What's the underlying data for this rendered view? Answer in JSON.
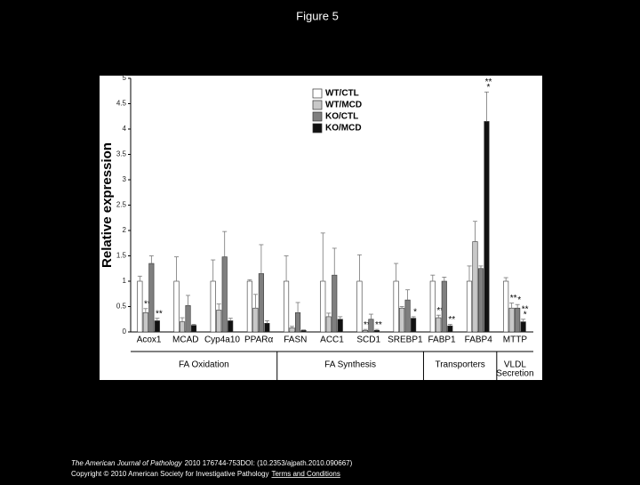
{
  "title": "Figure 5",
  "chart_data": {
    "type": "bar",
    "y_label": "Relative expression",
    "categories": [
      "Acox1",
      "MCAD",
      "Cyp4a10",
      "PPARα",
      "FASN",
      "ACC1",
      "SCD1",
      "SREBP1",
      "FABP1",
      "FABP4",
      "MTTP"
    ],
    "series": [
      {
        "name": "WT/CTL",
        "color": "#ffffff",
        "values": [
          1.0,
          1.0,
          1.0,
          1.0,
          1.0,
          1.0,
          1.0,
          1.0,
          1.0,
          1.0,
          1.0
        ],
        "errors": [
          0.1,
          0.48,
          0.42,
          0.03,
          0.5,
          0.95,
          0.52,
          0.35,
          0.12,
          0.3,
          0.07
        ],
        "significance": [
          null,
          null,
          null,
          null,
          null,
          null,
          null,
          null,
          null,
          null,
          null
        ]
      },
      {
        "name": "WT/MCD",
        "color": "#c8c8c8",
        "values": [
          0.38,
          0.2,
          0.43,
          0.47,
          0.08,
          0.3,
          0.03,
          0.47,
          0.28,
          1.78,
          0.47
        ],
        "errors": [
          0.08,
          0.08,
          0.12,
          0.27,
          0.03,
          0.07,
          0.02,
          0.03,
          0.05,
          0.4,
          0.1
        ],
        "significance": [
          "**",
          null,
          null,
          null,
          null,
          null,
          "**",
          null,
          "**",
          null,
          "**"
        ]
      },
      {
        "name": "KO/CTL",
        "color": "#7f7f7f",
        "values": [
          1.35,
          0.52,
          1.48,
          1.15,
          0.38,
          1.12,
          0.25,
          0.63,
          1.0,
          1.25,
          0.47
        ],
        "errors": [
          0.15,
          0.2,
          0.5,
          0.57,
          0.2,
          0.53,
          0.1,
          0.2,
          0.08,
          0.05,
          0.07
        ],
        "significance": [
          null,
          null,
          null,
          null,
          null,
          null,
          null,
          null,
          null,
          null,
          [
            "*"
          ]
        ]
      },
      {
        "name": "KO/MCD",
        "color": "#111111",
        "values": [
          0.22,
          0.13,
          0.22,
          0.17,
          0.03,
          0.25,
          0.03,
          0.27,
          0.12,
          4.15,
          0.2
        ],
        "errors": [
          0.05,
          0.02,
          0.05,
          0.05,
          0.01,
          0.05,
          0.02,
          0.03,
          0.03,
          0.58,
          0.05
        ],
        "significance": [
          "**",
          null,
          null,
          null,
          null,
          null,
          "**",
          "*",
          "**",
          [
            "**",
            "*"
          ],
          [
            "**",
            "*"
          ]
        ]
      }
    ],
    "groups": [
      {
        "label": "FA Oxidation",
        "categories": [
          "Acox1",
          "MCAD",
          "Cyp4a10",
          "PPARα"
        ]
      },
      {
        "label": "FA Synthesis",
        "categories": [
          "FASN",
          "ACC1",
          "SCD1",
          "SREBP1"
        ]
      },
      {
        "label": "Transporters",
        "categories": [
          "FABP1",
          "FABP4"
        ]
      },
      {
        "label": [
          "VLDL",
          "Secretion"
        ],
        "categories": [
          "MTTP"
        ]
      }
    ],
    "ylim": [
      0,
      5
    ],
    "yticks": [
      0,
      0.5,
      1,
      1.5,
      2,
      2.5,
      3,
      3.5,
      4,
      4.5,
      5
    ],
    "legend": "top"
  },
  "footer": {
    "journal": "The American Journal of Pathology",
    "citation": "2010 176744-753DOI: (10.2353/ajpath.2010.090667)",
    "copyright": "Copyright © 2010 American Society for Investigative Pathology",
    "link": "Terms and Conditions"
  }
}
